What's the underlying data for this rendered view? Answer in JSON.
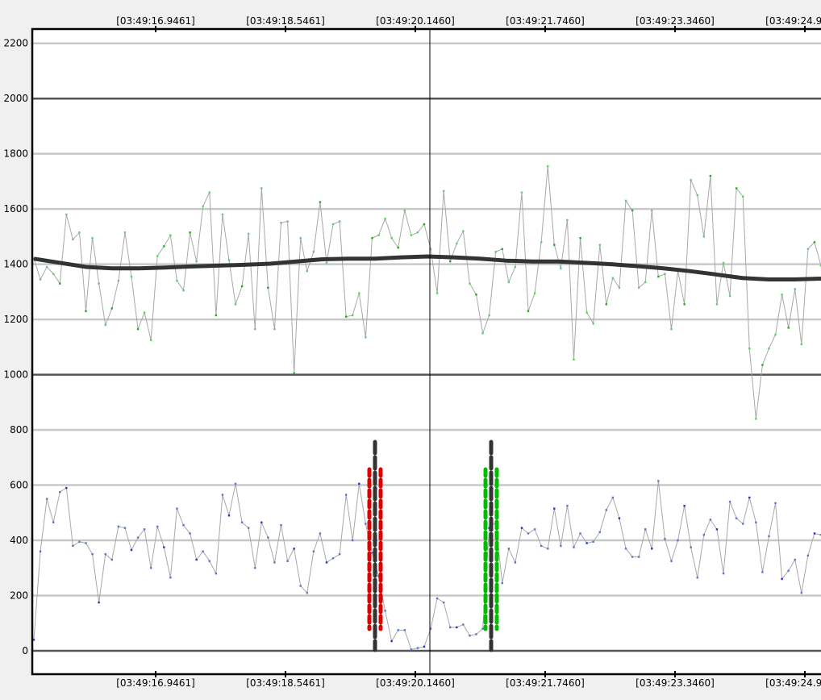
{
  "chart_data": {
    "type": "line",
    "title": "",
    "xlabel": "",
    "ylabel": "",
    "x_tick_labels": [
      "[03:49:16.9461]",
      "[03:49:18.5461]",
      "[03:49:20.1460]",
      "[03:49:21.7460]",
      "[03:49:23.3460]",
      "[03:49:24.9460]"
    ],
    "x_tick_times": [
      16.9461,
      18.5461,
      20.146,
      21.746,
      23.346,
      24.946
    ],
    "x_range": [
      15.38,
      25.03
    ],
    "y_ticks": [
      0,
      200,
      400,
      600,
      800,
      1000,
      1200,
      1400,
      1600,
      1800,
      2000,
      2200
    ],
    "ylim": [
      -80,
      2270
    ],
    "grid": true,
    "cursor_time": 20.325,
    "upper_series": {
      "values": [
        1420,
        1345,
        1390,
        1365,
        1330,
        1580,
        1490,
        1515,
        1230,
        1495,
        1330,
        1180,
        1240,
        1340,
        1515,
        1355,
        1165,
        1225,
        1125,
        1430,
        1465,
        1505,
        1340,
        1305,
        1515,
        1410,
        1610,
        1660,
        1215,
        1580,
        1415,
        1255,
        1320,
        1510,
        1165,
        1675,
        1315,
        1165,
        1550,
        1555,
        1005,
        1495,
        1375,
        1445,
        1625,
        1405,
        1545,
        1555,
        1210,
        1215,
        1295,
        1135,
        1495,
        1505,
        1565,
        1495,
        1460,
        1595,
        1505,
        1515,
        1545,
        1455,
        1295,
        1665,
        1410,
        1475,
        1520,
        1330,
        1290,
        1150,
        1215,
        1445,
        1455,
        1335,
        1390,
        1660,
        1230,
        1295,
        1480,
        1755,
        1470,
        1385,
        1560,
        1055,
        1495,
        1225,
        1185,
        1470,
        1255,
        1350,
        1315,
        1630,
        1595,
        1315,
        1335,
        1595,
        1355,
        1365,
        1165,
        1375,
        1255,
        1705,
        1650,
        1500,
        1720,
        1255,
        1405,
        1285,
        1675,
        1645,
        1095,
        840,
        1035,
        1095,
        1145,
        1290,
        1170,
        1310,
        1110,
        1455,
        1480,
        1395
      ]
    },
    "trend_line": {
      "values": [
        1420,
        1405,
        1390,
        1385,
        1385,
        1388,
        1392,
        1395,
        1398,
        1402,
        1410,
        1418,
        1420,
        1420,
        1425,
        1428,
        1425,
        1420,
        1413,
        1410,
        1410,
        1405,
        1400,
        1393,
        1385,
        1375,
        1363,
        1350,
        1345,
        1345,
        1348
      ]
    },
    "lower_series": {
      "values": [
        40,
        360,
        550,
        465,
        575,
        590,
        380,
        395,
        390,
        350,
        175,
        350,
        330,
        450,
        445,
        365,
        410,
        440,
        300,
        450,
        375,
        265,
        515,
        455,
        425,
        330,
        360,
        325,
        280,
        565,
        490,
        605,
        465,
        445,
        300,
        465,
        410,
        320,
        455,
        325,
        370,
        235,
        210,
        360,
        425,
        320,
        335,
        350,
        565,
        400,
        605,
        460,
        355,
        270,
        145,
        35,
        75,
        75,
        5,
        10,
        15,
        80,
        190,
        175,
        85,
        85,
        95,
        55,
        60,
        80,
        445,
        465,
        245,
        370,
        320,
        445,
        425,
        440,
        380,
        370,
        515,
        380,
        525,
        375,
        425,
        390,
        395,
        430,
        510,
        555,
        480,
        370,
        340,
        340,
        440,
        370,
        615,
        405,
        325,
        400,
        525,
        375,
        265,
        420,
        475,
        440,
        280,
        540,
        480,
        460,
        555,
        465,
        285,
        415,
        535,
        260,
        290,
        330,
        210,
        345,
        425,
        420
      ]
    },
    "markers": [
      {
        "time": 19.65,
        "color": "#dd0000"
      },
      {
        "time": 21.08,
        "color": "#00bb00"
      }
    ]
  }
}
